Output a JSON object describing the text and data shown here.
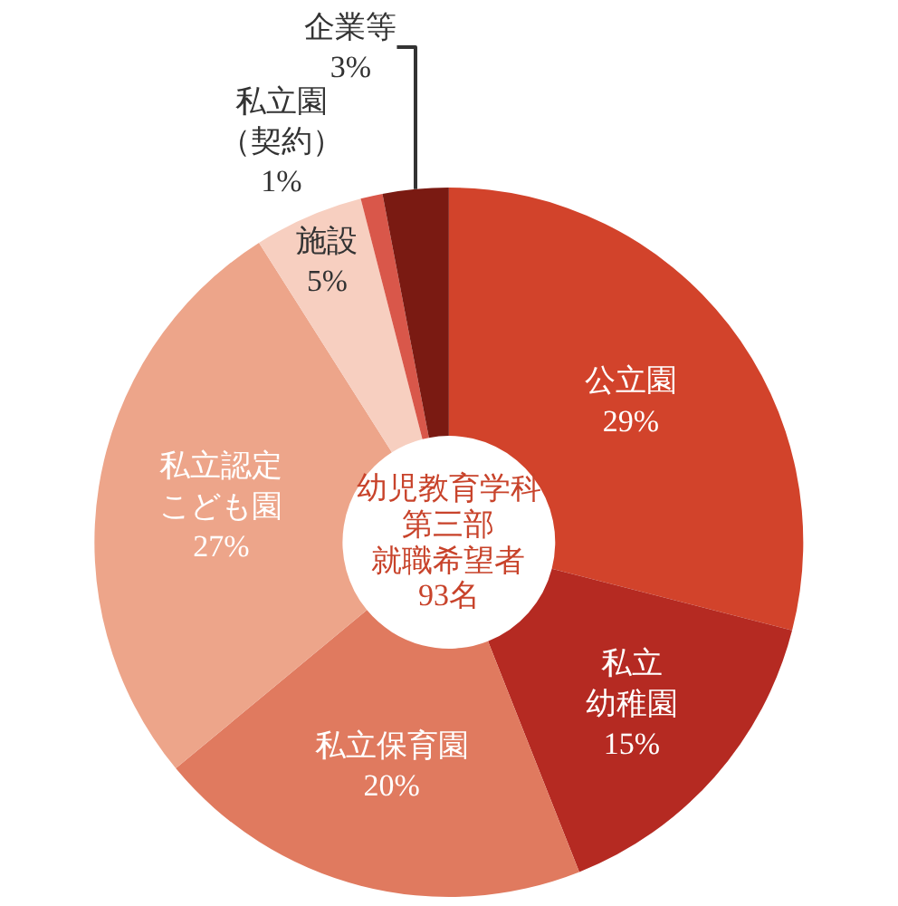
{
  "chart_data": {
    "type": "donut",
    "categories": [
      "公立園",
      "私立幼稚園",
      "私立保育園",
      "私立認定こども園",
      "施設",
      "私立園（契約）",
      "企業等"
    ],
    "values": [
      29,
      15,
      20,
      27,
      5,
      1,
      3
    ],
    "value_labels": [
      "29%",
      "15%",
      "20%",
      "27%",
      "5%",
      "1%",
      "3%"
    ],
    "colors": [
      "#d2432b",
      "#b52a22",
      "#e07a5f",
      "#eda58a",
      "#f7cfc0",
      "#d9574a",
      "#7a1a12"
    ],
    "annotations": [
      "幼児教育学科",
      "第三部",
      "就職希望者",
      "93名"
    ],
    "legend": false
  }
}
